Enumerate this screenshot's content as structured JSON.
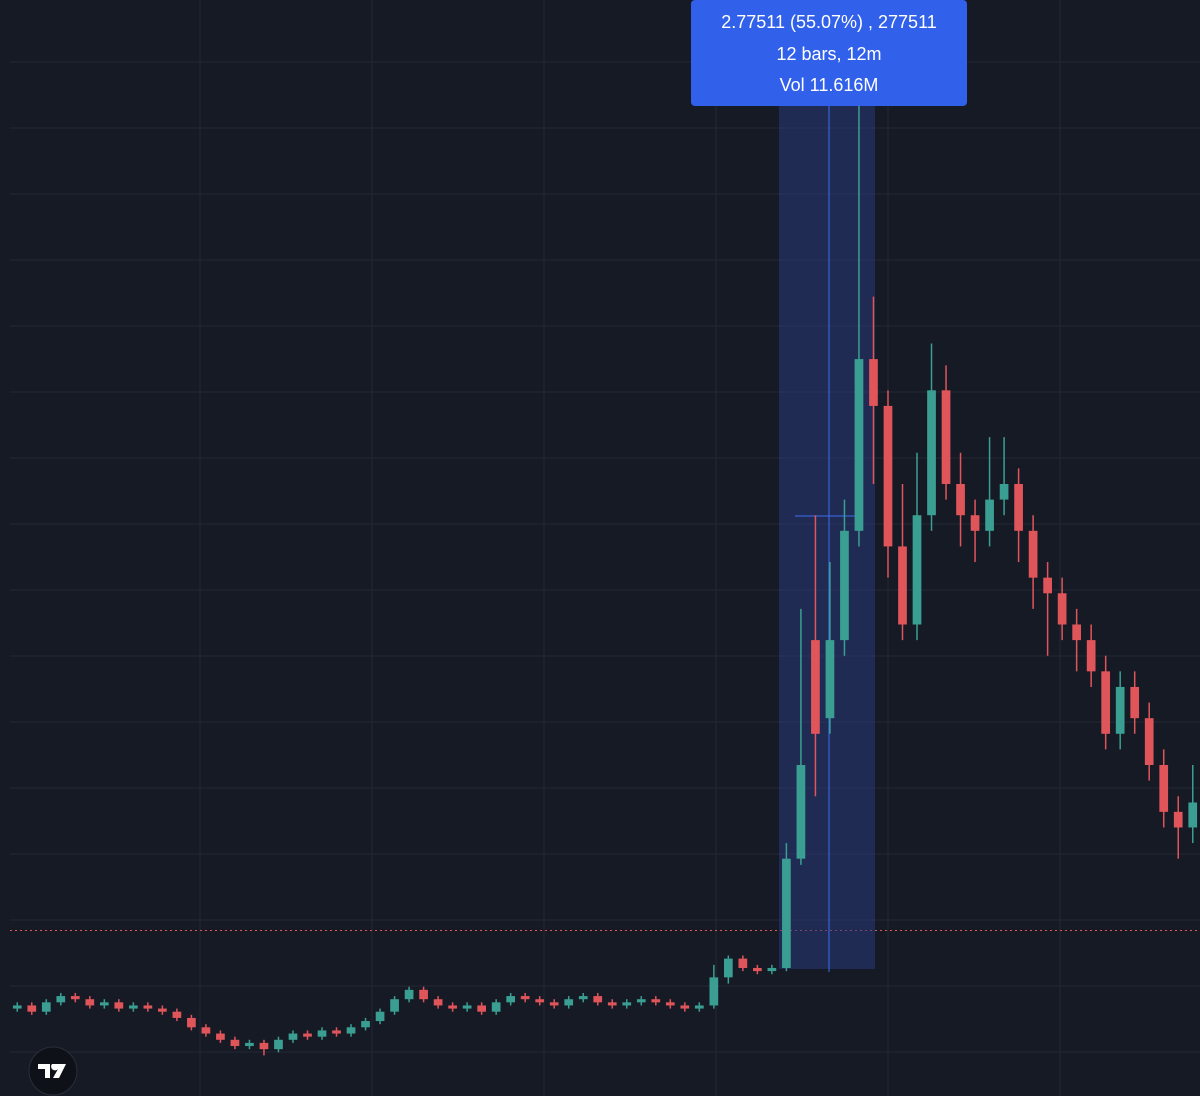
{
  "chart_data": {
    "type": "candlestick",
    "ylim": [
      4.64,
      8.15
    ],
    "up_color": "#3a9f92",
    "down_color": "#e0555a",
    "grid": true,
    "price_line": 5.17,
    "price_line_color": "#e0555a",
    "annotations": [
      "2.77511 (55.07%) , 277511",
      "12 bars, 12m",
      "Vol 11.616M"
    ],
    "open": [
      4.92,
      4.93,
      4.91,
      4.94,
      4.96,
      4.95,
      4.93,
      4.94,
      4.92,
      4.93,
      4.92,
      4.91,
      4.89,
      4.86,
      4.84,
      4.82,
      4.8,
      4.81,
      4.79,
      4.82,
      4.84,
      4.83,
      4.85,
      4.84,
      4.86,
      4.88,
      4.91,
      4.95,
      4.98,
      4.95,
      4.93,
      4.92,
      4.93,
      4.91,
      4.94,
      4.96,
      4.95,
      4.94,
      4.93,
      4.95,
      4.96,
      4.94,
      4.93,
      4.94,
      4.95,
      4.94,
      4.93,
      4.92,
      4.93,
      5.02,
      5.08,
      5.05,
      5.04,
      5.05,
      5.4,
      6.1,
      5.85,
      6.1,
      6.45,
      7.0,
      6.85,
      6.4,
      6.15,
      6.5,
      6.9,
      6.6,
      6.5,
      6.45,
      6.55,
      6.6,
      6.45,
      6.3,
      6.25,
      6.15,
      6.1,
      6.0,
      5.8,
      5.95,
      5.85,
      5.7,
      5.55,
      5.5
    ],
    "high": [
      4.94,
      4.94,
      4.95,
      4.97,
      4.97,
      4.96,
      4.95,
      4.95,
      4.94,
      4.94,
      4.93,
      4.92,
      4.9,
      4.87,
      4.85,
      4.83,
      4.82,
      4.82,
      4.83,
      4.85,
      4.85,
      4.86,
      4.86,
      4.87,
      4.89,
      4.92,
      4.96,
      4.99,
      4.99,
      4.96,
      4.94,
      4.94,
      4.94,
      4.95,
      4.97,
      4.97,
      4.96,
      4.95,
      4.96,
      4.97,
      4.97,
      4.95,
      4.95,
      4.96,
      4.96,
      4.95,
      4.94,
      4.94,
      5.06,
      5.09,
      5.09,
      5.06,
      5.06,
      5.45,
      6.2,
      6.5,
      6.35,
      6.55,
      8.15,
      7.2,
      6.9,
      6.6,
      6.7,
      7.05,
      6.98,
      6.7,
      6.55,
      6.75,
      6.75,
      6.65,
      6.5,
      6.35,
      6.3,
      6.2,
      6.15,
      6.05,
      6.0,
      6.0,
      5.9,
      5.75,
      5.6,
      5.7
    ],
    "low": [
      4.91,
      4.9,
      4.9,
      4.93,
      4.94,
      4.92,
      4.92,
      4.91,
      4.91,
      4.91,
      4.9,
      4.88,
      4.85,
      4.83,
      4.81,
      4.79,
      4.79,
      4.77,
      4.78,
      4.81,
      4.82,
      4.82,
      4.83,
      4.83,
      4.85,
      4.87,
      4.9,
      4.94,
      4.94,
      4.92,
      4.91,
      4.91,
      4.9,
      4.9,
      4.93,
      4.94,
      4.93,
      4.92,
      4.92,
      4.94,
      4.93,
      4.92,
      4.92,
      4.93,
      4.93,
      4.92,
      4.91,
      4.91,
      4.92,
      5.0,
      5.04,
      5.03,
      5.03,
      5.04,
      5.38,
      5.6,
      5.8,
      6.05,
      6.4,
      6.6,
      6.3,
      6.1,
      6.1,
      6.45,
      6.55,
      6.4,
      6.35,
      6.4,
      6.5,
      6.35,
      6.2,
      6.05,
      6.1,
      6.0,
      5.95,
      5.75,
      5.75,
      5.8,
      5.65,
      5.5,
      5.4,
      5.45
    ],
    "close": [
      4.93,
      4.91,
      4.94,
      4.96,
      4.95,
      4.93,
      4.94,
      4.92,
      4.93,
      4.92,
      4.91,
      4.89,
      4.86,
      4.84,
      4.82,
      4.8,
      4.81,
      4.79,
      4.82,
      4.84,
      4.83,
      4.85,
      4.84,
      4.86,
      4.88,
      4.91,
      4.95,
      4.98,
      4.95,
      4.93,
      4.92,
      4.93,
      4.91,
      4.94,
      4.96,
      4.95,
      4.94,
      4.93,
      4.95,
      4.96,
      4.94,
      4.93,
      4.94,
      4.95,
      4.94,
      4.93,
      4.92,
      4.93,
      5.02,
      5.08,
      5.05,
      5.04,
      5.05,
      5.4,
      5.7,
      5.8,
      6.1,
      6.45,
      7.0,
      6.85,
      6.4,
      6.15,
      6.5,
      6.9,
      6.6,
      6.5,
      6.45,
      6.55,
      6.6,
      6.45,
      6.3,
      6.25,
      6.15,
      6.1,
      6.0,
      5.8,
      5.95,
      5.85,
      5.7,
      5.55,
      5.5,
      5.58
    ]
  }
}
